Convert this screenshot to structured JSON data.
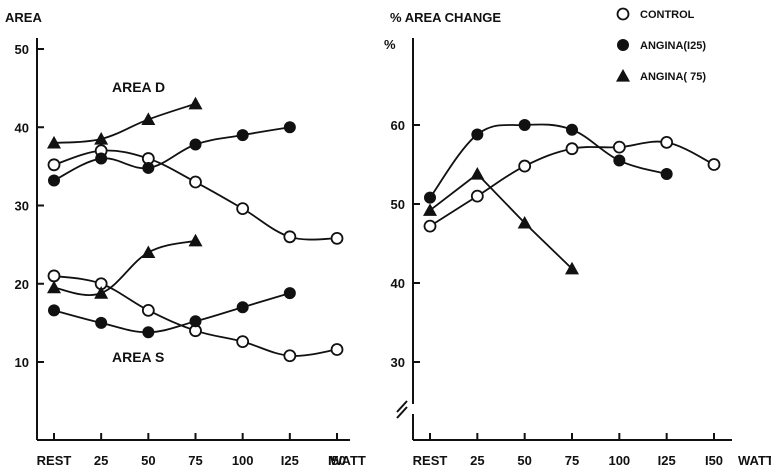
{
  "chart_data": [
    {
      "type": "scatter",
      "title": "",
      "ylabel": "AREA",
      "xlabel": "WATT",
      "x_tick_labels": [
        "REST",
        "25",
        "50",
        "75",
        "100",
        "I25",
        "I50"
      ],
      "x": [
        0,
        25,
        50,
        75,
        100,
        125,
        150
      ],
      "ylim": [
        0,
        50
      ],
      "y_ticks": [
        "10",
        "20",
        "30",
        "40",
        "50"
      ],
      "annotations": [
        "AREA D",
        "AREA S"
      ],
      "series": [
        {
          "group": "AREA D",
          "name": "CONTROL",
          "marker": "open-circle",
          "x": [
            0,
            25,
            50,
            75,
            100,
            125,
            150
          ],
          "y": [
            35.2,
            37.0,
            36.0,
            33.0,
            29.6,
            26.0,
            25.8
          ]
        },
        {
          "group": "AREA D",
          "name": "ANGINA(I25)",
          "marker": "filled-circle",
          "x": [
            0,
            25,
            50,
            75,
            100,
            125
          ],
          "y": [
            33.2,
            36.0,
            34.8,
            37.8,
            39.0,
            40.0
          ]
        },
        {
          "group": "AREA D",
          "name": "ANGINA( 75)",
          "marker": "filled-triangle",
          "x": [
            0,
            25,
            50,
            75
          ],
          "y": [
            38.0,
            38.5,
            41.0,
            43.0
          ]
        },
        {
          "group": "AREA S",
          "name": "CONTROL",
          "marker": "open-circle",
          "x": [
            0,
            25,
            50,
            75,
            100,
            125,
            150
          ],
          "y": [
            21.0,
            20.0,
            16.6,
            14.0,
            12.6,
            10.8,
            11.6
          ]
        },
        {
          "group": "AREA S",
          "name": "ANGINA(I25)",
          "marker": "filled-circle",
          "x": [
            0,
            25,
            50,
            75,
            100,
            125
          ],
          "y": [
            16.6,
            15.0,
            13.8,
            15.2,
            17.0,
            18.8
          ]
        },
        {
          "group": "AREA S",
          "name": "ANGINA( 75)",
          "marker": "filled-triangle",
          "x": [
            0,
            25,
            50,
            75
          ],
          "y": [
            19.5,
            18.8,
            24.0,
            25.5
          ]
        }
      ]
    },
    {
      "type": "scatter",
      "title": "",
      "ylabel": "% AREA CHANGE",
      "y_unit": "%",
      "xlabel": "WATT",
      "x_tick_labels": [
        "REST",
        "25",
        "50",
        "75",
        "100",
        "I25",
        "I50"
      ],
      "x": [
        0,
        25,
        50,
        75,
        100,
        125,
        150
      ],
      "ylim": [
        30,
        60
      ],
      "y_ticks": [
        "30",
        "40",
        "50",
        "60"
      ],
      "axis_break": true,
      "series": [
        {
          "name": "CONTROL",
          "marker": "open-circle",
          "x": [
            0,
            25,
            50,
            75,
            100,
            125,
            150
          ],
          "y": [
            47.2,
            51.0,
            54.8,
            57.0,
            57.2,
            57.8,
            55.0
          ]
        },
        {
          "name": "ANGINA(I25)",
          "marker": "filled-circle",
          "x": [
            0,
            25,
            50,
            75,
            100,
            125
          ],
          "y": [
            50.8,
            58.8,
            60.0,
            59.4,
            55.5,
            53.8
          ]
        },
        {
          "name": "ANGINA( 75)",
          "marker": "filled-triangle",
          "x": [
            0,
            25,
            50,
            75
          ],
          "y": [
            49.2,
            53.8,
            47.6,
            41.8
          ]
        }
      ]
    }
  ],
  "legend": {
    "placement": "top-right",
    "items": [
      {
        "label": "CONTROL",
        "marker": "open-circle"
      },
      {
        "label": "ANGINA(I25)",
        "marker": "filled-circle"
      },
      {
        "label": "ANGINA( 75)",
        "marker": "filled-triangle"
      }
    ]
  }
}
